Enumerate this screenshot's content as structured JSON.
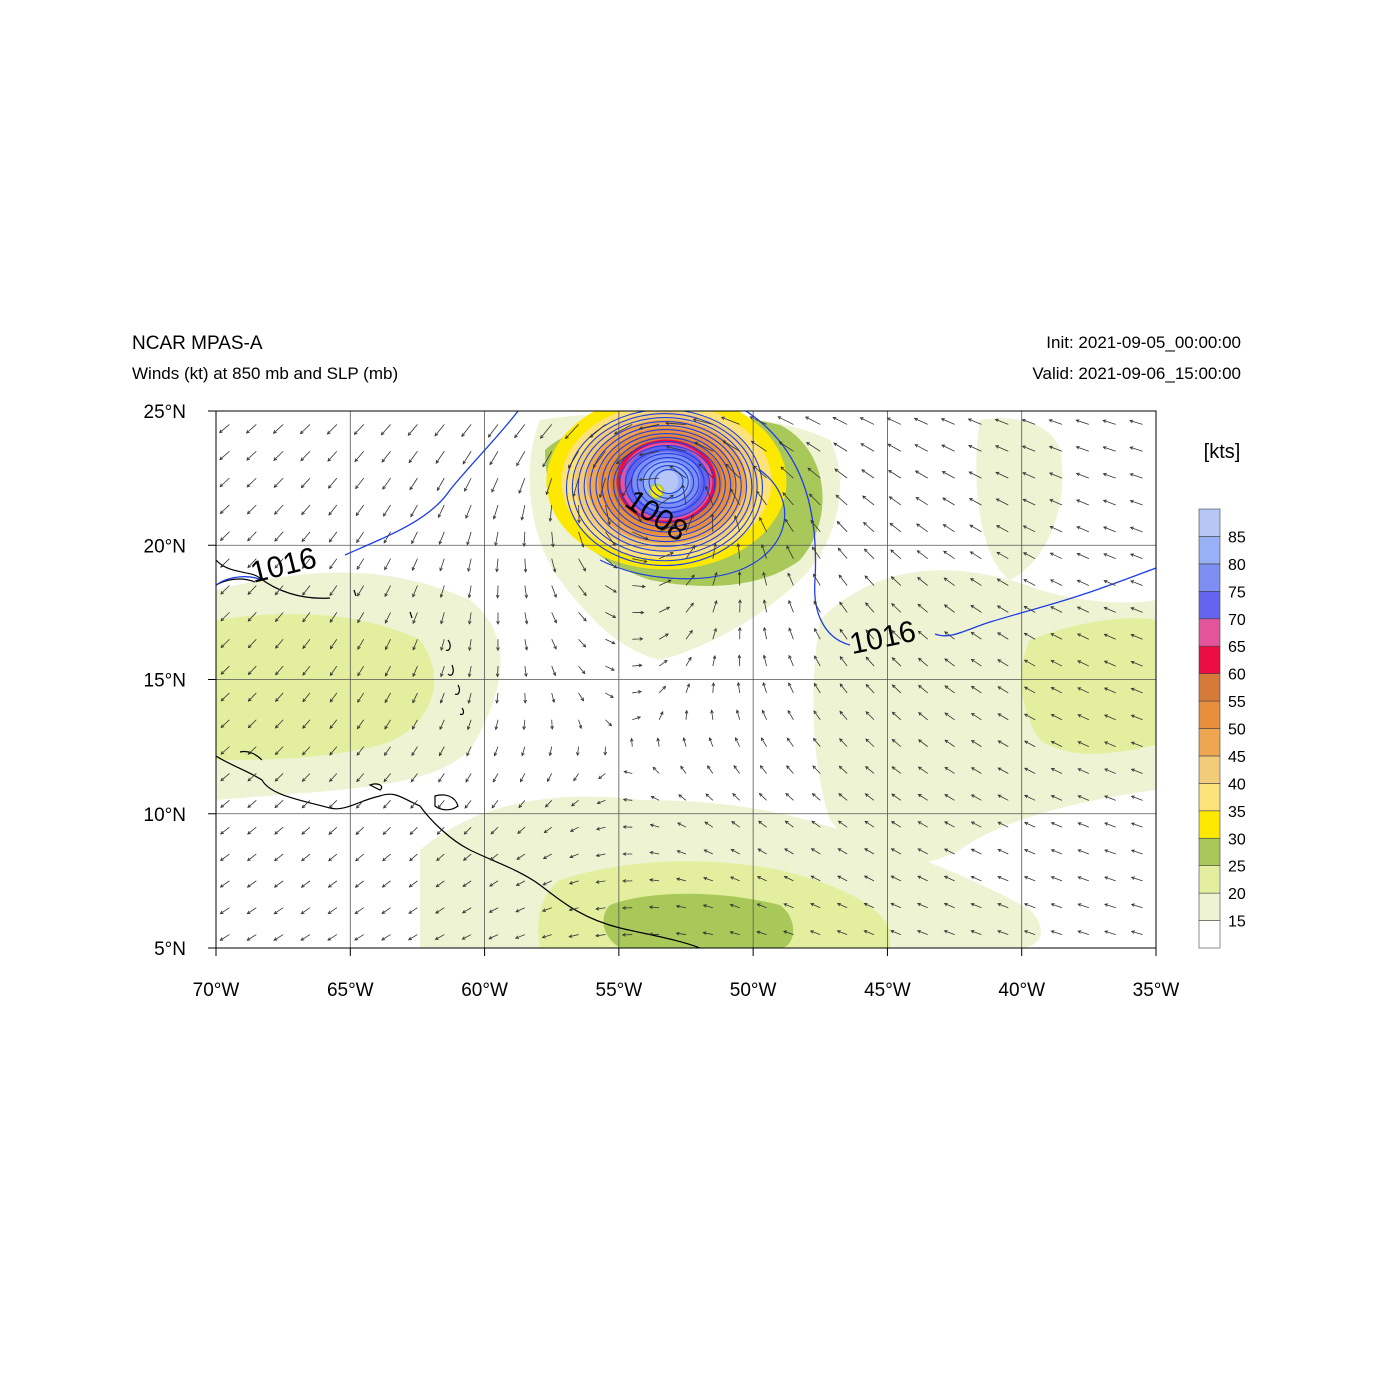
{
  "header": {
    "title": "NCAR MPAS-A",
    "subtitle": "Winds (kt) at 850 mb and SLP (mb)",
    "init": "Init: 2021-09-05_00:00:00",
    "valid": "Valid: 2021-09-06_15:00:00"
  },
  "map": {
    "lon_range": [
      -70,
      -35
    ],
    "lat_range": [
      5,
      25
    ],
    "lon_ticks": [
      {
        "value": -70,
        "label": "70°W"
      },
      {
        "value": -65,
        "label": "65°W"
      },
      {
        "value": -60,
        "label": "60°W"
      },
      {
        "value": -55,
        "label": "55°W"
      },
      {
        "value": -50,
        "label": "50°W"
      },
      {
        "value": -45,
        "label": "45°W"
      },
      {
        "value": -40,
        "label": "40°W"
      },
      {
        "value": -35,
        "label": "35°W"
      }
    ],
    "lat_ticks": [
      {
        "value": 25,
        "label": "25°N"
      },
      {
        "value": 20,
        "label": "20°N"
      },
      {
        "value": 15,
        "label": "15°N"
      },
      {
        "value": 10,
        "label": "10°N"
      },
      {
        "value": 5,
        "label": "5°N"
      }
    ],
    "storm_center": {
      "lon": -53.6,
      "lat": 22.0
    },
    "contour_labels": [
      {
        "text": "1016",
        "lon": -67.4,
        "lat": 18.9
      },
      {
        "text": "1008",
        "lon": -53.8,
        "lat": 20.8
      },
      {
        "text": "1016",
        "lon": -45.1,
        "lat": 16.2
      }
    ]
  },
  "colorbar": {
    "unit_label": "[kts]",
    "levels": [
      "15",
      "20",
      "25",
      "30",
      "35",
      "40",
      "45",
      "50",
      "55",
      "60",
      "65",
      "70",
      "75",
      "80",
      "85"
    ],
    "colors": [
      "#ffffff",
      "#eef3d3",
      "#e3ef9f",
      "#a8c95a",
      "#fde800",
      "#fde27b",
      "#f3cc79",
      "#eea650",
      "#e88f3e",
      "#d57a38",
      "#ee0c45",
      "#e3549a",
      "#6464ee",
      "#7d8ff2",
      "#97b0f6",
      "#b5c6f7"
    ]
  }
}
